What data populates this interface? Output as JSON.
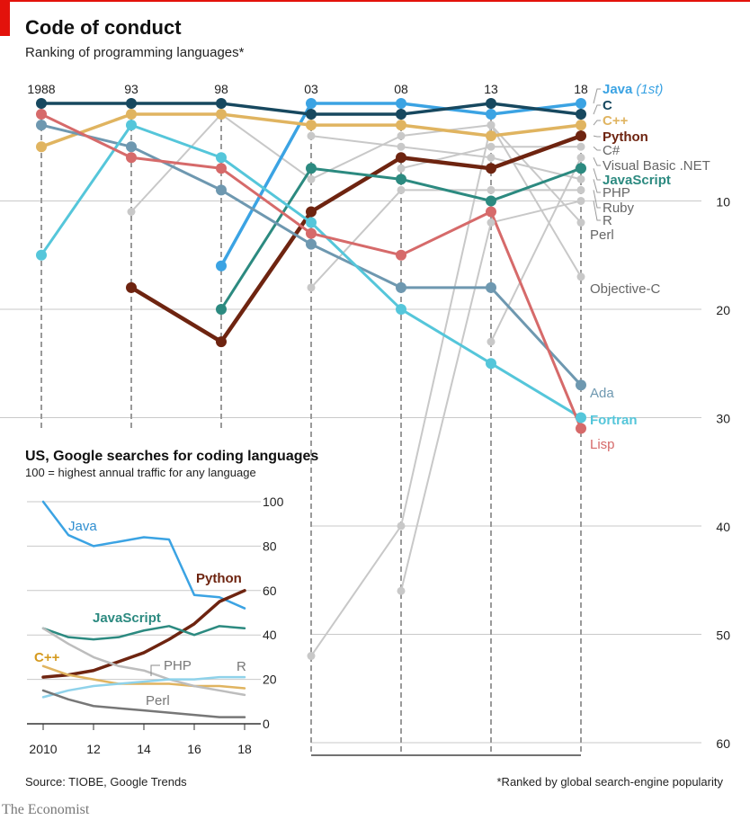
{
  "header": {
    "title": "Code of conduct",
    "subtitle": "Ranking of programming languages*"
  },
  "footer": {
    "source": "Source: TIOBE, Google Trends",
    "note": "*Ranked by global search-engine popularity",
    "brand": "The Economist"
  },
  "chart_data": [
    {
      "type": "line",
      "title": "Ranking of programming languages*",
      "x": [
        "1988",
        "93",
        "98",
        "03",
        "08",
        "13",
        "18"
      ],
      "y_ticks": [
        "10",
        "20",
        "30",
        "40",
        "50",
        "60"
      ],
      "y_inverted": true,
      "ylim": [
        1,
        60
      ],
      "series": [
        {
          "name": "Java",
          "annotation": "(1st)",
          "color": "#3ba3e3",
          "width": 3.5,
          "bold": true,
          "values": [
            null,
            null,
            16,
            1,
            1,
            2,
            1
          ]
        },
        {
          "name": "C",
          "color": "#17485f",
          "width": 3.5,
          "bold": true,
          "values": [
            1,
            1,
            1,
            2,
            2,
            1,
            2
          ]
        },
        {
          "name": "C++",
          "color": "#e0b460",
          "width": 3.5,
          "bold": true,
          "values": [
            5,
            2,
            2,
            3,
            3,
            4,
            3
          ]
        },
        {
          "name": "Python",
          "color": "#6e2410",
          "width": 4.5,
          "bold": true,
          "values": [
            null,
            18,
            23,
            11,
            6,
            7,
            4
          ]
        },
        {
          "name": "C#",
          "color": "#c8c8c8",
          "width": 2,
          "values": [
            null,
            null,
            null,
            null,
            7,
            5,
            5
          ]
        },
        {
          "name": "Visual Basic .NET",
          "color": "#c8c8c8",
          "width": 2,
          "values": [
            null,
            null,
            null,
            null,
            null,
            23,
            6
          ]
        },
        {
          "name": "JavaScript",
          "color": "#2c8a80",
          "width": 3,
          "bold": true,
          "values": [
            null,
            null,
            20,
            7,
            8,
            10,
            7
          ]
        },
        {
          "name": "PHP",
          "color": "#c8c8c8",
          "width": 2,
          "values": [
            null,
            null,
            null,
            4,
            5,
            6,
            8
          ]
        },
        {
          "name": "Ruby",
          "color": "#c8c8c8",
          "width": 2,
          "values": [
            null,
            null,
            null,
            18,
            9,
            9,
            9
          ]
        },
        {
          "name": "R",
          "color": "#c8c8c8",
          "width": 2,
          "values": [
            null,
            null,
            null,
            null,
            46,
            12,
            10
          ]
        },
        {
          "name": "Perl",
          "color": "#c8c8c8",
          "width": 2,
          "values": [
            null,
            11,
            2,
            8,
            4,
            3,
            12
          ]
        },
        {
          "name": "Objective-C",
          "color": "#c8c8c8",
          "width": 2,
          "values": [
            null,
            null,
            null,
            52,
            40,
            3,
            17
          ]
        },
        {
          "name": "Ada",
          "color": "#6e98b0",
          "width": 3,
          "bold": false,
          "values": [
            3,
            5,
            9,
            14,
            18,
            18,
            27
          ]
        },
        {
          "name": "Fortran",
          "color": "#55c6da",
          "width": 3,
          "bold": true,
          "values": [
            15,
            3,
            6,
            12,
            20,
            25,
            30
          ]
        },
        {
          "name": "Lisp",
          "color": "#d66a6a",
          "width": 3,
          "bold": false,
          "values": [
            2,
            6,
            7,
            13,
            15,
            11,
            31
          ]
        }
      ]
    },
    {
      "type": "line",
      "title": "US, Google searches for coding languages",
      "subtitle": "100 = highest annual traffic for any language",
      "x": [
        2010,
        2011,
        2012,
        2013,
        2014,
        2015,
        2016,
        2017,
        2018
      ],
      "x_ticks": [
        "2010",
        "12",
        "14",
        "16",
        "18"
      ],
      "y_ticks": [
        "0",
        "20",
        "40",
        "60",
        "80",
        "100"
      ],
      "ylim": [
        0,
        100
      ],
      "series": [
        {
          "name": "Java",
          "color": "#3ba3e3",
          "label_color": "#2f8ed0",
          "values": [
            100,
            85,
            80,
            82,
            84,
            83,
            58,
            57,
            52
          ]
        },
        {
          "name": "Python",
          "color": "#6e2410",
          "label_color": "#6e2410",
          "values": [
            21,
            22,
            24,
            28,
            32,
            38,
            45,
            55,
            60
          ]
        },
        {
          "name": "JavaScript",
          "color": "#2c8a80",
          "label_color": "#2c8a80",
          "values": [
            43,
            39,
            38,
            39,
            42,
            44,
            40,
            44,
            43
          ]
        },
        {
          "name": "C++",
          "color": "#e0b460",
          "label_color": "#d59a1f",
          "values": [
            26,
            22,
            20,
            18,
            18,
            18,
            17,
            17,
            16
          ]
        },
        {
          "name": "PHP",
          "color": "#bdbdbd",
          "label_color": "#777777",
          "values": [
            43,
            36,
            30,
            26,
            24,
            20,
            17,
            15,
            13
          ]
        },
        {
          "name": "R",
          "color": "#8fd2ea",
          "label_color": "#777777",
          "values": [
            12,
            15,
            17,
            18,
            19,
            20,
            20,
            21,
            21
          ]
        },
        {
          "name": "Perl",
          "color": "#777777",
          "label_color": "#777777",
          "values": [
            15,
            11,
            8,
            7,
            6,
            5,
            4,
            3,
            3
          ]
        }
      ]
    }
  ]
}
